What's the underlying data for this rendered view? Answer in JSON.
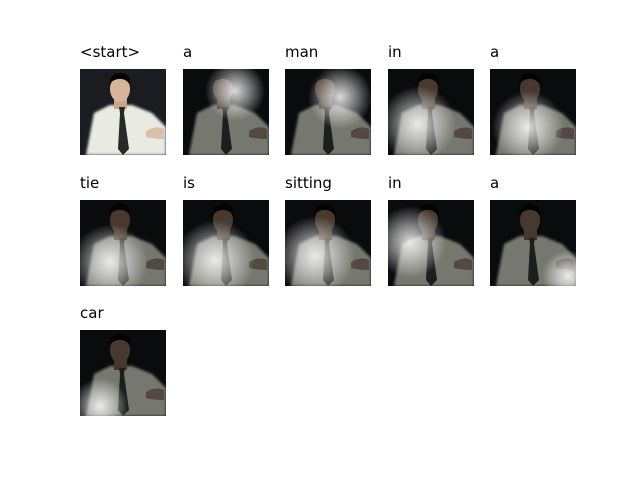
{
  "words": [
    "<start>",
    "a",
    "man",
    "in",
    "a",
    "tie",
    "is",
    "sitting",
    "in",
    "a",
    "car"
  ]
}
